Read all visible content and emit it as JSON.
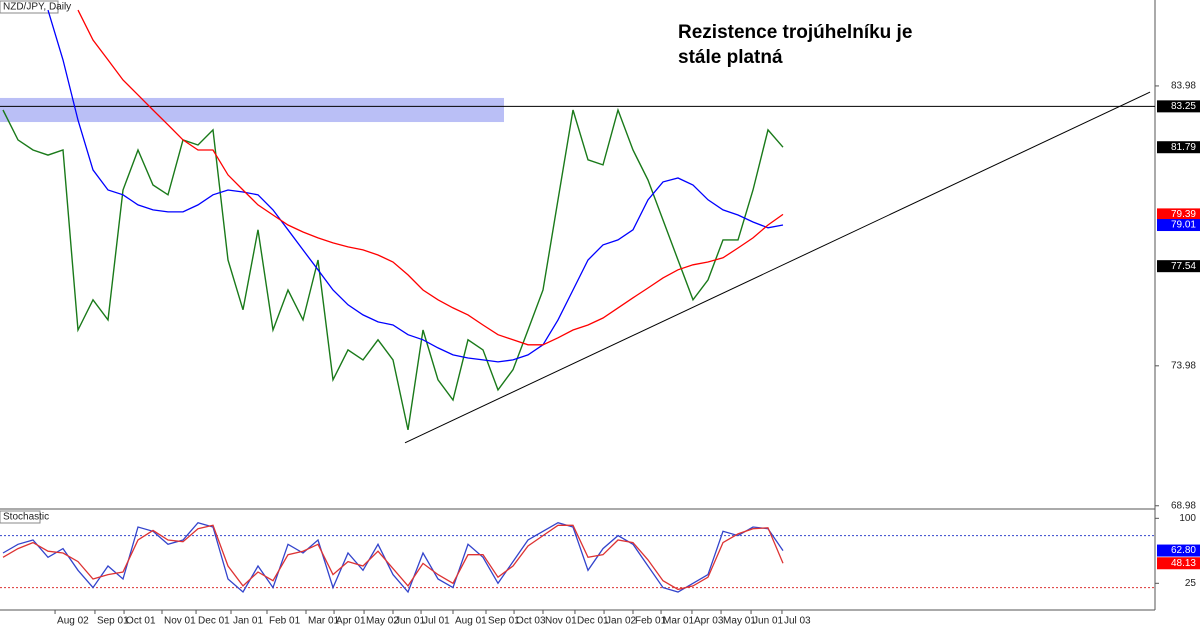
{
  "chart_data": [
    {
      "type": "line",
      "title": "NZD/JPY, Daily",
      "annotation": [
        "Rezistence trojúhelníku je",
        "stále platná"
      ],
      "xlim": [
        -0.2,
        76.8
      ],
      "ylim": [
        68.9,
        87.05
      ],
      "yticks": [
        68.98,
        73.98,
        83.98
      ],
      "xticks": [
        {
          "value": 3.47,
          "label": "Aug 02"
        },
        {
          "value": 6.13,
          "label": "Sep 01"
        },
        {
          "value": 8.07,
          "label": "Oct 01"
        },
        {
          "value": 10.6,
          "label": "Nov 01"
        },
        {
          "value": 12.87,
          "label": "Dec 01"
        },
        {
          "value": 15.2,
          "label": "Jan 01"
        },
        {
          "value": 17.6,
          "label": "Feb 01"
        },
        {
          "value": 20.2,
          "label": "Mar 01"
        },
        {
          "value": 22.07,
          "label": "Apr 01"
        },
        {
          "value": 24.07,
          "label": "May 02"
        },
        {
          "value": 26,
          "label": "Jun 01"
        },
        {
          "value": 27.87,
          "label": "Jul 01"
        },
        {
          "value": 30,
          "label": "Aug 01"
        },
        {
          "value": 32.2,
          "label": "Sep 01"
        },
        {
          "value": 34.07,
          "label": "Oct 03"
        },
        {
          "value": 36,
          "label": "Nov 01"
        },
        {
          "value": 38.13,
          "label": "Dec 01"
        },
        {
          "value": 40.07,
          "label": "Jan 02"
        },
        {
          "value": 42,
          "label": "Feb 01"
        },
        {
          "value": 43.87,
          "label": "Mar 01"
        },
        {
          "value": 45.93,
          "label": "Apr 03"
        },
        {
          "value": 47.87,
          "label": "May 01"
        },
        {
          "value": 49.87,
          "label": "Jun 01"
        },
        {
          "value": 51.93,
          "label": "Jul 03"
        }
      ],
      "zone": [
        82.69,
        83.55
      ],
      "zone_color": "#b3b8f5",
      "hline": 83.25,
      "trendline": {
        "x": [
          26.8,
          76.47
        ],
        "y": [
          71.23,
          83.76
        ]
      },
      "series": [
        {
          "color": "#1a7a1a",
          "values": [
            83.12,
            82.05,
            81.69,
            81.51,
            81.69,
            75.26,
            76.34,
            75.62,
            80.26,
            81.69,
            80.44,
            80.09,
            82.05,
            81.87,
            82.41,
            77.76,
            75.98,
            78.84,
            75.26,
            76.69,
            75.62,
            77.76,
            73.48,
            74.55,
            74.19,
            74.91,
            74.19,
            71.69,
            75.26,
            73.48,
            72.76,
            74.91,
            74.55,
            73.12,
            73.84,
            75.26,
            76.69,
            79.91,
            83.12,
            81.34,
            81.16,
            83.12,
            81.69,
            80.62,
            79.19,
            77.76,
            76.34,
            77.05,
            78.48,
            78.48,
            80.26,
            82.41,
            81.79
          ]
        },
        {
          "color": "#0000ff",
          "values": [
            null,
            null,
            null,
            86.69,
            84.91,
            82.76,
            80.98,
            80.26,
            80.09,
            79.73,
            79.55,
            79.48,
            79.48,
            79.73,
            80.09,
            80.26,
            80.19,
            80.09,
            79.55,
            78.84,
            78.12,
            77.41,
            76.69,
            76.16,
            75.8,
            75.55,
            75.44,
            75.09,
            74.91,
            74.62,
            74.37,
            74.26,
            74.19,
            74.12,
            74.19,
            74.37,
            74.73,
            75.62,
            76.69,
            77.76,
            78.3,
            78.48,
            78.84,
            79.91,
            80.55,
            80.69,
            80.44,
            79.91,
            79.55,
            79.37,
            79.12,
            78.91,
            79.01
          ]
        },
        {
          "color": "#ff0000",
          "values": [
            null,
            null,
            null,
            null,
            null,
            86.69,
            85.62,
            84.91,
            84.19,
            83.66,
            83.12,
            82.59,
            82.05,
            81.69,
            81.69,
            80.8,
            80.26,
            79.73,
            79.37,
            79.01,
            78.76,
            78.55,
            78.37,
            78.23,
            78.12,
            77.94,
            77.69,
            77.23,
            76.69,
            76.34,
            76.05,
            75.8,
            75.44,
            75.09,
            74.91,
            74.73,
            74.73,
            74.98,
            75.26,
            75.44,
            75.69,
            76.05,
            76.41,
            76.76,
            77.12,
            77.41,
            77.59,
            77.69,
            77.84,
            78.19,
            78.55,
            79.01,
            79.39
          ]
        }
      ],
      "price_labels": [
        {
          "value": 83.25,
          "color": "#000000"
        },
        {
          "value": 81.79,
          "color": "#000000"
        },
        {
          "value": 79.39,
          "color": "#ff0000"
        },
        {
          "value": 79.01,
          "color": "#0000ff"
        },
        {
          "value": 77.54,
          "color": "#000000"
        }
      ]
    },
    {
      "type": "line",
      "title": "Stochastic",
      "xlim": [
        -0.2,
        76.8
      ],
      "ylim": [
        -3.5,
        109.6
      ],
      "yticks": [
        25,
        100
      ],
      "levels": [
        {
          "value": 80,
          "color": "#3344cc"
        },
        {
          "value": 20,
          "color": "#dd3333"
        }
      ],
      "series": [
        {
          "color": "#3344cc",
          "values": [
            60,
            70,
            75,
            55,
            65,
            40,
            20,
            45,
            30,
            90,
            85,
            70,
            75,
            95,
            90,
            30,
            15,
            45,
            20,
            70,
            60,
            75,
            20,
            60,
            40,
            70,
            35,
            15,
            60,
            30,
            20,
            70,
            55,
            25,
            50,
            75,
            85,
            95,
            90,
            40,
            65,
            80,
            70,
            45,
            20,
            15,
            25,
            35,
            85,
            80,
            90,
            88,
            62.8
          ]
        },
        {
          "color": "#dd3333",
          "values": [
            55,
            65,
            72,
            62,
            60,
            50,
            30,
            35,
            38,
            75,
            86,
            75,
            73,
            88,
            92,
            45,
            22,
            38,
            28,
            58,
            62,
            70,
            35,
            50,
            45,
            62,
            42,
            22,
            48,
            35,
            25,
            58,
            58,
            32,
            45,
            68,
            80,
            92,
            92,
            55,
            58,
            75,
            72,
            52,
            28,
            18,
            22,
            32,
            72,
            82,
            88,
            89,
            48.13
          ]
        }
      ],
      "price_labels": [
        {
          "value": 62.8,
          "label": "62.80",
          "color": "#0000ff"
        },
        {
          "value": 48.13,
          "label": "48.13",
          "color": "#ff0000"
        }
      ]
    }
  ]
}
